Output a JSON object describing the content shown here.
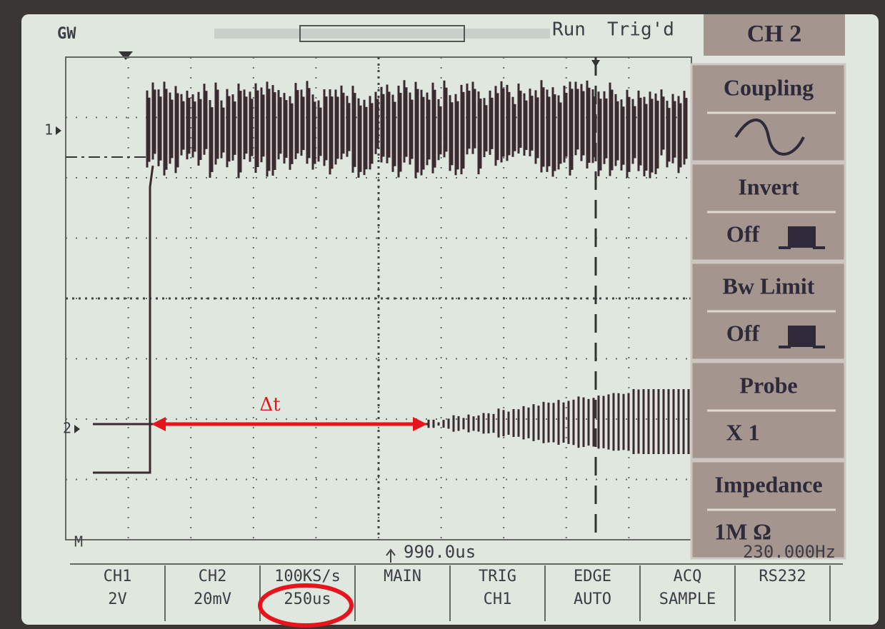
{
  "status": {
    "brand": "GW",
    "run": "Run",
    "trigger": "Trig'd"
  },
  "menu": {
    "title": "CH 2",
    "items": [
      {
        "label": "Coupling"
      },
      {
        "label": "Invert",
        "value": "Off"
      },
      {
        "label": "Bw Limit",
        "value": "Off"
      },
      {
        "label": "Probe",
        "value": "X 1"
      },
      {
        "label": "Impedance",
        "value": "1M Ω"
      }
    ]
  },
  "markers": {
    "ch1": "1",
    "ch2": "2",
    "math": "M"
  },
  "annotation": "Δt",
  "readout": {
    "trigger_position": "990.0us",
    "frequency": "230.000Hz"
  },
  "bottom": [
    {
      "top": "CH1",
      "bottom": "2V"
    },
    {
      "top": "CH2",
      "bottom": "20mV"
    },
    {
      "top": "100KS/s",
      "bottom": "250us"
    },
    {
      "top": "MAIN"
    },
    {
      "top": "TRIG",
      "bottom": "CH1"
    },
    {
      "top": "EDGE",
      "bottom": "AUTO"
    },
    {
      "top": "ACQ",
      "bottom": "SAMPLE"
    },
    {
      "top": "RS232"
    }
  ]
}
